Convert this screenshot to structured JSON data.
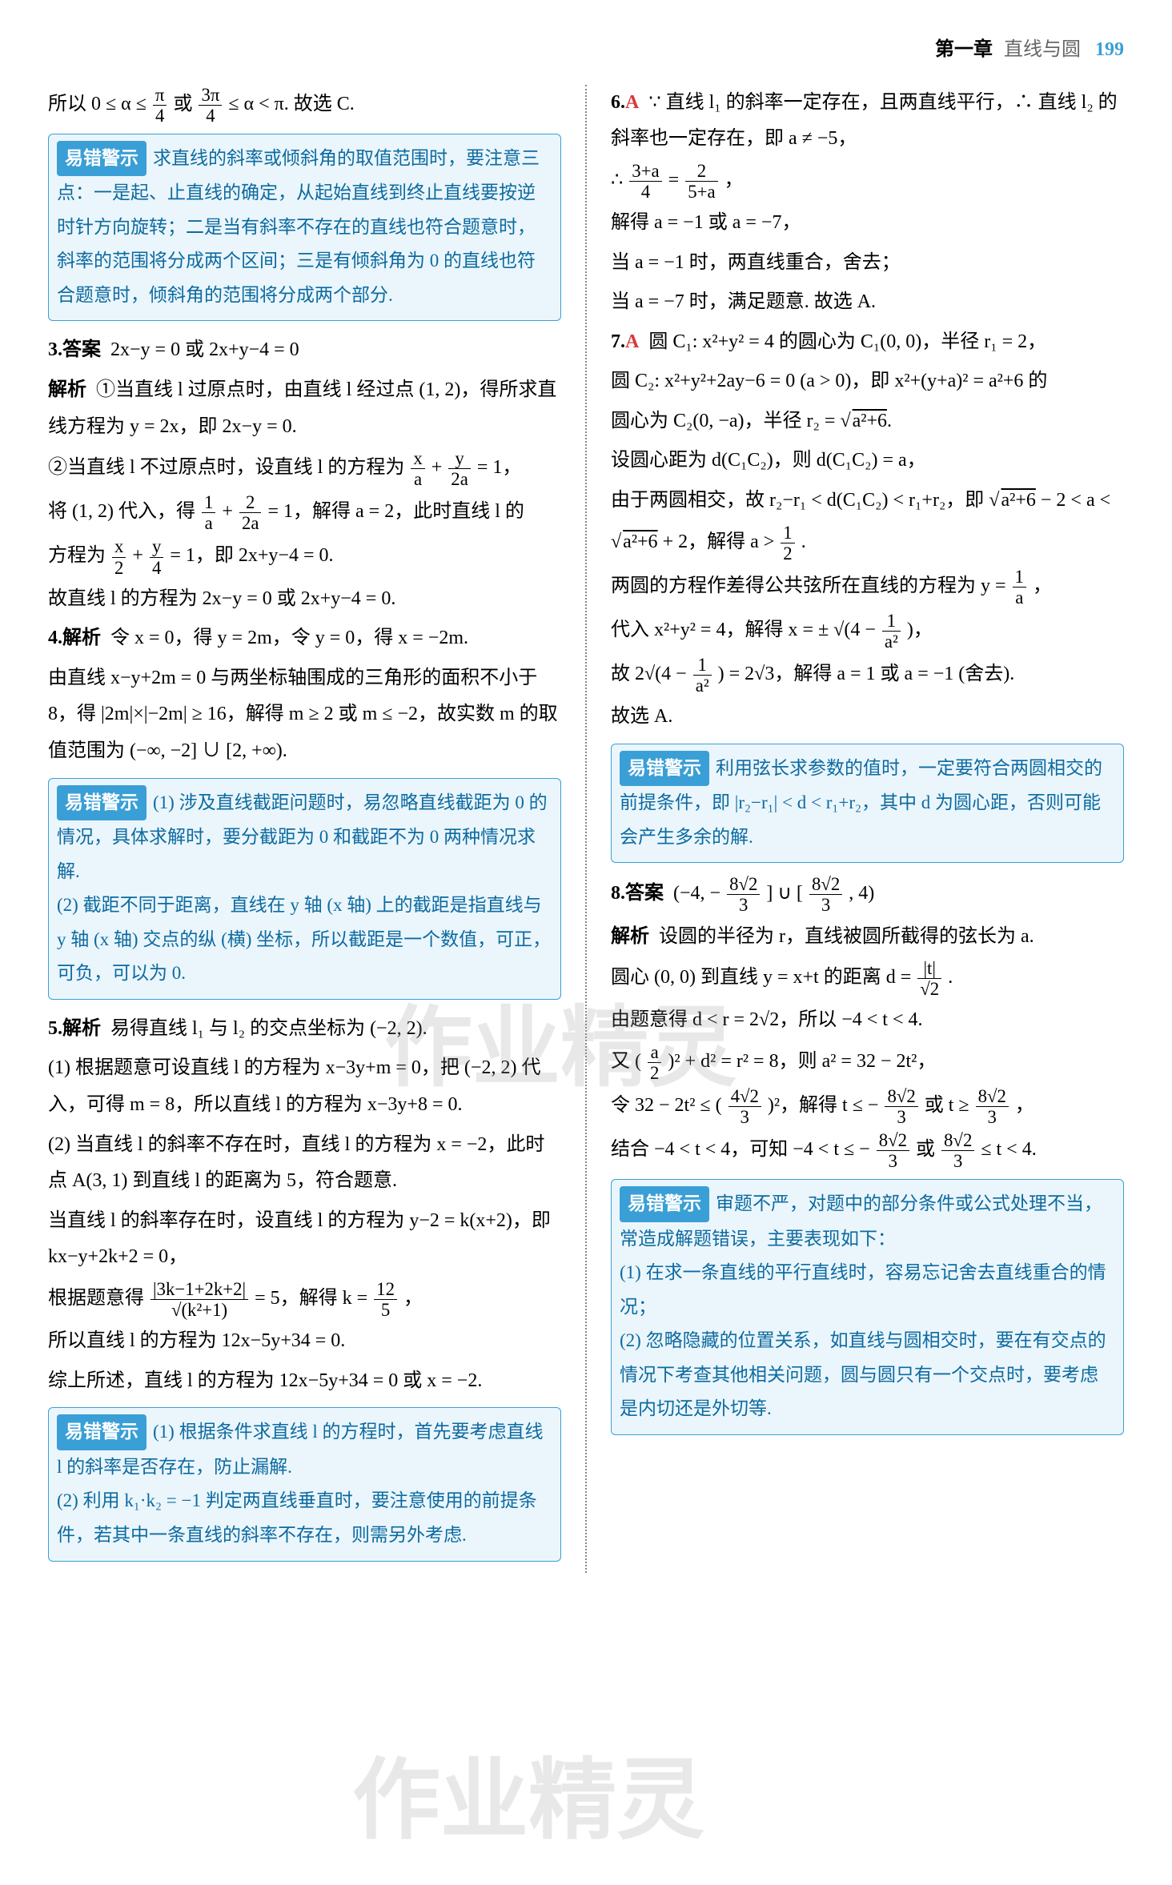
{
  "header": {
    "chapter": "第一章",
    "title": "直线与圆",
    "pagenum": "199"
  },
  "watermark": "作业精灵",
  "warn_tag": "易错警示",
  "left": {
    "p_intro": "所以 0 ≤ α ≤ ",
    "p_intro_f1_num": "π",
    "p_intro_f1_den": "4",
    "p_intro_mid": " 或 ",
    "p_intro_f2_num": "3π",
    "p_intro_f2_den": "4",
    "p_intro_end": " ≤ α < π. 故选 C.",
    "warn1": "求直线的斜率或倾斜角的取值范围时，要注意三点：一是起、止直线的确定，从起始直线到终止直线要按逆时针方向旋转；二是当有斜率不存在的直线也符合题意时，斜率的范围将分成两个区间；三是有倾斜角为 0 的直线也符合题意时，倾斜角的范围将分成两个部分.",
    "q3_ans_label": "3.答案",
    "q3_ans": "2x−y = 0 或 2x+y−4 = 0",
    "q3_analysis_label": "解析",
    "q3_p1": "①当直线 l 过原点时，由直线 l 经过点 (1, 2)，得所求直线方程为 y = 2x，即 2x−y = 0.",
    "q3_p2a": "②当直线 l 不过原点时，设直线 l 的方程为 ",
    "q3_f1_num": "x",
    "q3_f1_den": "a",
    "q3_plus": "+",
    "q3_f2_num": "y",
    "q3_f2_den": "2a",
    "q3_p2b": " = 1，",
    "q3_p3a": "将 (1, 2) 代入，得 ",
    "q3_f3_num": "1",
    "q3_f3_den": "a",
    "q3_f4_num": "2",
    "q3_f4_den": "2a",
    "q3_p3b": " = 1，解得 a = 2，此时直线 l 的",
    "q3_p4a": "方程为 ",
    "q3_f5_num": "x",
    "q3_f5_den": "2",
    "q3_f6_num": "y",
    "q3_f6_den": "4",
    "q3_p4b": " = 1，即 2x+y−4 = 0.",
    "q3_p5": "故直线 l 的方程为 2x−y = 0 或 2x+y−4 = 0.",
    "q4_label": "4.解析",
    "q4_p1": "令 x = 0，得 y = 2m，令 y = 0，得 x = −2m.",
    "q4_p2": "由直线 x−y+2m = 0 与两坐标轴围成的三角形的面积不小于 8，得 |2m|×|−2m| ≥ 16，解得 m ≥ 2 或 m ≤ −2，故实数 m 的取值范围为 (−∞, −2] ∪ [2, +∞).",
    "warn2": "(1) 涉及直线截距问题时，易忽略直线截距为 0 的情况，具体求解时，要分截距为 0 和截距不为 0 两种情况求解.\n(2) 截距不同于距离，直线在 y 轴 (x 轴) 上的截距是指直线与 y 轴 (x 轴) 交点的纵 (横) 坐标，所以截距是一个数值，可正，可负，可以为 0.",
    "q5_label": "5.解析",
    "q5_p1": "易得直线 l₁ 与 l₂ 的交点坐标为 (−2, 2).",
    "q5_p2": "(1) 根据题意可设直线 l 的方程为 x−3y+m = 0，把 (−2, 2) 代入，可得 m = 8，所以直线 l 的方程为 x−3y+8 = 0.",
    "q5_p3": "(2) 当直线 l 的斜率不存在时，直线 l 的方程为 x = −2，此时点 A(3, 1) 到直线 l 的距离为 5，符合题意.",
    "q5_p4": "当直线 l 的斜率存在时，设直线 l 的方程为 y−2 = k(x+2)，即 kx−y+2k+2 = 0，",
    "q5_p5a": "根据题意得 ",
    "q5_f1_num": "|3k−1+2k+2|",
    "q5_f1_den": "√(k²+1)",
    "q5_p5b": " = 5，解得 k = ",
    "q5_f2_num": "12",
    "q5_f2_den": "5",
    "q5_p5c": "，",
    "q5_p6": "所以直线 l 的方程为 12x−5y+34 = 0.",
    "q5_p7": "综上所述，直线 l 的方程为 12x−5y+34 = 0 或 x = −2.",
    "warn3": "(1) 根据条件求直线 l 的方程时，首先要考虑直线 l 的斜率是否存在，防止漏解.\n(2) 利用 k₁·k₂ = −1 判定两直线垂直时，要注意使用的前提条件，若其中一条直线的斜率不存在，则需另外考虑."
  },
  "right": {
    "q6_num": "6.",
    "q6_choice": "A",
    "q6_p1": "∵ 直线 l₁ 的斜率一定存在，且两直线平行，∴ 直线 l₂ 的斜率也一定存在，即 a ≠ −5，",
    "q6_p2a": "∴ ",
    "q6_f1_num": "3+a",
    "q6_f1_den": "4",
    "q6_eq": " = ",
    "q6_f2_num": "2",
    "q6_f2_den": "5+a",
    "q6_p2b": "，",
    "q6_p3": "解得 a = −1 或 a = −7，",
    "q6_p4": "当 a = −1 时，两直线重合，舍去；",
    "q6_p5": "当 a = −7 时，满足题意. 故选 A.",
    "q7_num": "7.",
    "q7_choice": "A",
    "q7_p1": "圆 C₁: x²+y² = 4 的圆心为 C₁(0, 0)，半径 r₁ = 2，",
    "q7_p2": "圆 C₂: x²+y²+2ay−6 = 0 (a > 0)，即 x²+(y+a)² = a²+6 的",
    "q7_sqrt1": "a²+6",
    "q7_p3a": "圆心为 C₂(0, −a)，半径 r₂ = √",
    "q7_p3b": ".",
    "q7_p4": "设圆心距为 d(C₁C₂)，则 d(C₁C₂) = a，",
    "q7_p5a": "由于两圆相交，故 r₂−r₁ < d(C₁C₂) < r₁+r₂，即 √",
    "q7_sqrt2": "a²+6",
    "q7_p5b": " − 2 < a <",
    "q7_p6a": "√",
    "q7_sqrt3": "a²+6",
    "q7_p6b": " + 2，解得 a > ",
    "q7_f1_num": "1",
    "q7_f1_den": "2",
    "q7_p6c": ".",
    "q7_p7a": "两圆的方程作差得公共弦所在直线的方程为 y = ",
    "q7_f2_num": "1",
    "q7_f2_den": "a",
    "q7_p7b": "，",
    "q7_p8a": "代入 x²+y² = 4，解得 x = ± √(4 − ",
    "q7_f3_num": "1",
    "q7_f3_den": "a²",
    "q7_p8b": ")，",
    "q7_p9a": "故 2√(4 − ",
    "q7_f4_num": "1",
    "q7_f4_den": "a²",
    "q7_p9b": ") = 2√3，解得 a = 1 或 a = −1 (舍去).",
    "q7_p10": "故选 A.",
    "warn4": "利用弦长求参数的值时，一定要符合两圆相交的前提条件，即 |r₂−r₁| < d < r₁+r₂，其中 d 为圆心距，否则可能会产生多余的解.",
    "q8_label": "8.答案",
    "q8_ans_a": "(−4, −",
    "q8_f1_num": "8√2",
    "q8_f1_den": "3",
    "q8_ans_b": "] ∪ [",
    "q8_f2_num": "8√2",
    "q8_f2_den": "3",
    "q8_ans_c": ", 4)",
    "q8_analysis_label": "解析",
    "q8_p1": "设圆的半径为 r，直线被圆所截得的弦长为 a.",
    "q8_p2a": "圆心 (0, 0) 到直线 y = x+t 的距离 d = ",
    "q8_f3_num": "|t|",
    "q8_f3_den": "√2",
    "q8_p2b": ".",
    "q8_p3": "由题意得 d < r = 2√2，所以 −4 < t < 4.",
    "q8_p4a": "又 (",
    "q8_f4_num": "a",
    "q8_f4_den": "2",
    "q8_p4b": ")² + d² = r² = 8，则 a² = 32 − 2t²，",
    "q8_p5a": "令 32 − 2t² ≤ (",
    "q8_f5_num": "4√2",
    "q8_f5_den": "3",
    "q8_p5b": ")²，解得 t ≤ −",
    "q8_f6_num": "8√2",
    "q8_f6_den": "3",
    "q8_p5c": " 或 t ≥ ",
    "q8_f7_num": "8√2",
    "q8_f7_den": "3",
    "q8_p5d": "，",
    "q8_p6a": "结合 −4 < t < 4，可知 −4 < t ≤ −",
    "q8_f8_num": "8√2",
    "q8_f8_den": "3",
    "q8_p6b": " 或 ",
    "q8_f9_num": "8√2",
    "q8_f9_den": "3",
    "q8_p6c": " ≤ t < 4.",
    "warn5": "审题不严，对题中的部分条件或公式处理不当，常造成解题错误，主要表现如下：\n(1) 在求一条直线的平行直线时，容易忘记舍去直线重合的情况；\n(2) 忽略隐藏的位置关系，如直线与圆相交时，要在有交点的情况下考查其他相关问题，圆与圆只有一个交点时，要考虑是内切还是外切等."
  }
}
